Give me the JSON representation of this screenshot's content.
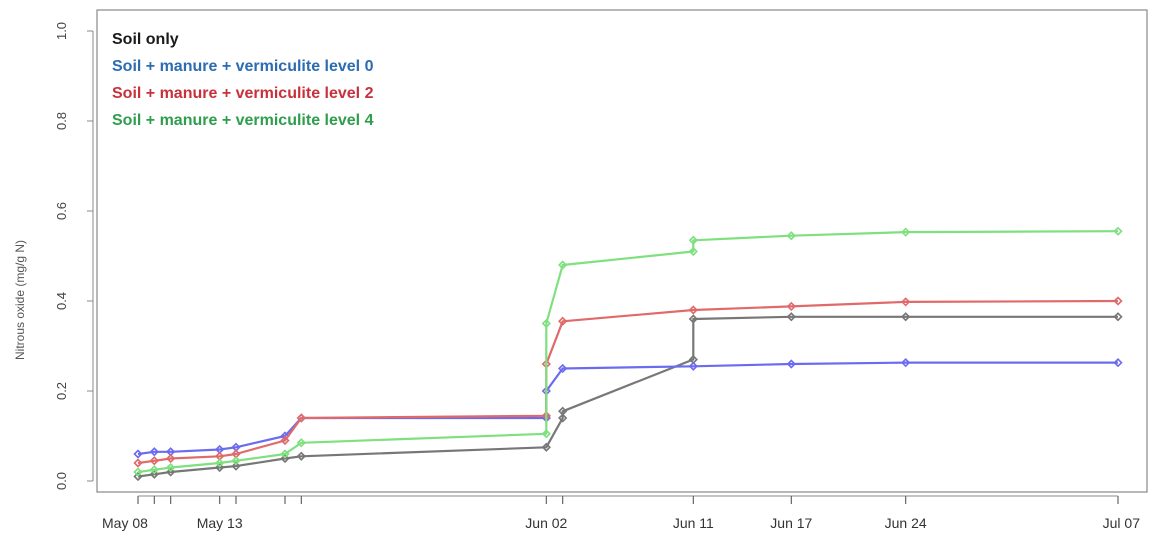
{
  "chart_data": {
    "type": "line",
    "title": "",
    "xlabel": "",
    "ylabel": "Nitrous oxide (mg/g N)",
    "ylim": [
      0.0,
      1.0
    ],
    "yticks": [
      "0.0",
      "0.2",
      "0.4",
      "0.6",
      "0.8",
      "1.0"
    ],
    "xlim": [
      "2000-05-07",
      "2000-07-08"
    ],
    "xtick_labels": [
      {
        "date": "2000-05-08",
        "label": "May 08"
      },
      {
        "date": "2000-05-13",
        "label": "May 13"
      },
      {
        "date": "2000-06-02",
        "label": "Jun 02"
      },
      {
        "date": "2000-06-11",
        "label": "Jun 11"
      },
      {
        "date": "2000-06-17",
        "label": "Jun 17"
      },
      {
        "date": "2000-06-24",
        "label": "Jun 24"
      },
      {
        "date": "2000-07-07",
        "label": "Jul 07"
      }
    ],
    "legend_position": "top-left",
    "grid": false,
    "series": [
      {
        "name": "Soil only",
        "color": "#1a1a1a",
        "line_color": "#777777",
        "points": [
          [
            "2000-05-08",
            0.01
          ],
          [
            "2000-05-09",
            0.015
          ],
          [
            "2000-05-10",
            0.02
          ],
          [
            "2000-05-13",
            0.03
          ],
          [
            "2000-05-14",
            0.033
          ],
          [
            "2000-05-17",
            0.05
          ],
          [
            "2000-05-18",
            0.055
          ],
          [
            "2000-06-02",
            0.075
          ],
          [
            "2000-06-03",
            0.14
          ],
          [
            "2000-06-03",
            0.155
          ],
          [
            "2000-06-11",
            0.27
          ],
          [
            "2000-06-11",
            0.36
          ],
          [
            "2000-06-17",
            0.365
          ],
          [
            "2000-06-24",
            0.365
          ],
          [
            "2000-07-07",
            0.365
          ]
        ]
      },
      {
        "name": "Soil + manure + vermiculite level 0",
        "color": "#2b6cb3",
        "line_color": "#6b6bf0",
        "points": [
          [
            "2000-05-08",
            0.06
          ],
          [
            "2000-05-09",
            0.065
          ],
          [
            "2000-05-10",
            0.065
          ],
          [
            "2000-05-13",
            0.07
          ],
          [
            "2000-05-14",
            0.075
          ],
          [
            "2000-05-17",
            0.1
          ],
          [
            "2000-05-18",
            0.14
          ],
          [
            "2000-06-02",
            0.14
          ],
          [
            "2000-06-02",
            0.2
          ],
          [
            "2000-06-03",
            0.25
          ],
          [
            "2000-06-11",
            0.255
          ],
          [
            "2000-06-17",
            0.26
          ],
          [
            "2000-06-24",
            0.263
          ],
          [
            "2000-07-07",
            0.263
          ]
        ]
      },
      {
        "name": "Soil + manure + vermiculite level 2",
        "color": "#c8313c",
        "line_color": "#e06a6a",
        "points": [
          [
            "2000-05-08",
            0.04
          ],
          [
            "2000-05-09",
            0.045
          ],
          [
            "2000-05-10",
            0.05
          ],
          [
            "2000-05-13",
            0.055
          ],
          [
            "2000-05-14",
            0.06
          ],
          [
            "2000-05-17",
            0.09
          ],
          [
            "2000-05-18",
            0.14
          ],
          [
            "2000-06-02",
            0.145
          ],
          [
            "2000-06-02",
            0.26
          ],
          [
            "2000-06-03",
            0.355
          ],
          [
            "2000-06-11",
            0.38
          ],
          [
            "2000-06-17",
            0.388
          ],
          [
            "2000-06-24",
            0.398
          ],
          [
            "2000-07-07",
            0.4
          ]
        ]
      },
      {
        "name": "Soil + manure + vermiculite level 4",
        "color": "#2e9e4e",
        "line_color": "#7ee07e",
        "points": [
          [
            "2000-05-08",
            0.02
          ],
          [
            "2000-05-09",
            0.025
          ],
          [
            "2000-05-10",
            0.03
          ],
          [
            "2000-05-13",
            0.04
          ],
          [
            "2000-05-14",
            0.045
          ],
          [
            "2000-05-17",
            0.06
          ],
          [
            "2000-05-18",
            0.085
          ],
          [
            "2000-06-02",
            0.105
          ],
          [
            "2000-06-02",
            0.35
          ],
          [
            "2000-06-03",
            0.48
          ],
          [
            "2000-06-11",
            0.51
          ],
          [
            "2000-06-11",
            0.535
          ],
          [
            "2000-06-17",
            0.545
          ],
          [
            "2000-06-24",
            0.553
          ],
          [
            "2000-07-07",
            0.555
          ]
        ]
      }
    ]
  }
}
